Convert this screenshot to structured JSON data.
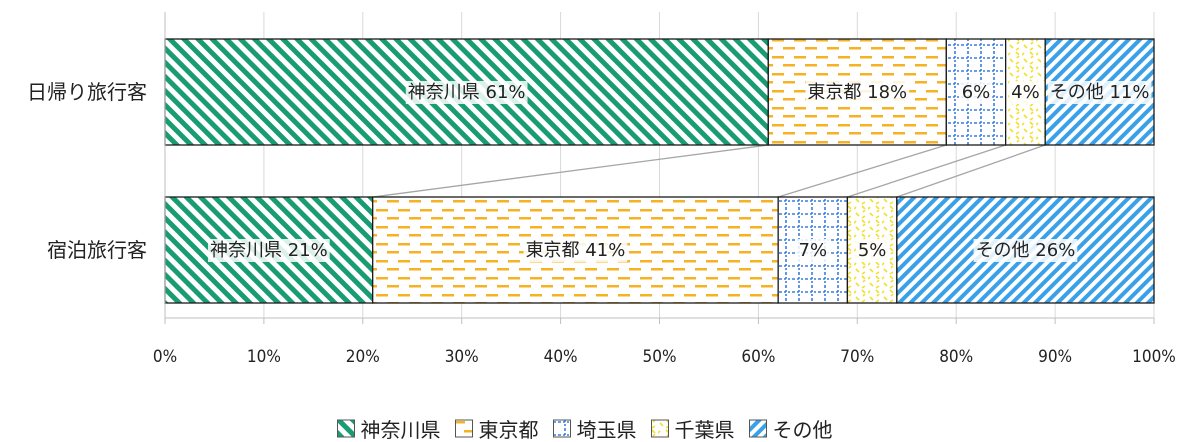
{
  "chart_data": {
    "type": "bar",
    "orientation": "horizontal",
    "stacked": "percent",
    "categories": [
      "日帰り旅行客",
      "宿泊旅行客"
    ],
    "series": [
      {
        "name": "神奈川県",
        "values": [
          61,
          21
        ],
        "color": "#1a9c72"
      },
      {
        "name": "東京都",
        "values": [
          18,
          41
        ],
        "color": "#f5b223"
      },
      {
        "name": "埼玉県",
        "values": [
          6,
          7
        ],
        "color": "#3a7be0"
      },
      {
        "name": "千葉県",
        "values": [
          4,
          5
        ],
        "color": "#f2e02a"
      },
      {
        "name": "その他",
        "values": [
          11,
          26
        ],
        "color": "#3aa0e8"
      }
    ],
    "segment_labels": [
      [
        "神奈川県 61%",
        "東京都 18%",
        "6%",
        "4%",
        "その他 11%"
      ],
      [
        "神奈川県 21%",
        "東京都 41%",
        "7%",
        "5%",
        "その他 26%"
      ]
    ],
    "x_ticks": [
      "0%",
      "10%",
      "20%",
      "30%",
      "40%",
      "50%",
      "60%",
      "70%",
      "80%",
      "90%",
      "100%"
    ],
    "xlim": [
      0,
      100
    ],
    "grid": true,
    "series_lines": true,
    "legend": "bottom"
  }
}
